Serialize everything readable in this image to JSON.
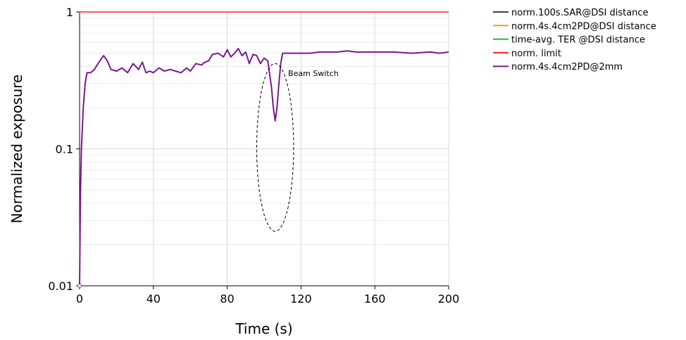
{
  "chart_data": {
    "type": "line",
    "xlabel": "Time (s)",
    "ylabel": "Normalized exposure",
    "xlim": [
      0,
      200
    ],
    "ylim": [
      0.01,
      1
    ],
    "yscale": "log",
    "xticks": [
      "0",
      "40",
      "80",
      "120",
      "160",
      "200"
    ],
    "yticks": [
      "0.01",
      "0.1",
      "1"
    ],
    "grid": true,
    "legend_position": "right",
    "series": [
      {
        "name": "norm.100s.SAR@DSI distance",
        "color": "#404040",
        "x": [],
        "y": []
      },
      {
        "name": "norm.4s.4cm2PD@DSI distance",
        "color": "#f0a30a",
        "x": [],
        "y": []
      },
      {
        "name": "time-avg. TER @DSI distance",
        "color": "#1db954",
        "x": [],
        "y": []
      },
      {
        "name": "norm. limit",
        "color": "#ff2020",
        "x": [
          0,
          200
        ],
        "y": [
          1,
          1
        ]
      },
      {
        "name": "norm.4s.4cm2PD@2mm",
        "color": "#7a1a8c",
        "x": [
          0,
          0.5,
          1,
          2,
          3,
          4,
          6,
          8,
          10,
          12,
          13,
          15,
          17,
          20,
          23,
          26,
          29,
          32,
          34,
          36,
          38,
          40,
          43,
          46,
          49,
          52,
          55,
          58,
          60,
          63,
          66,
          68,
          70,
          72,
          75,
          78,
          80,
          82,
          84,
          86,
          88,
          90,
          92,
          94,
          96,
          98,
          100,
          102,
          104,
          105,
          106,
          107,
          108,
          109,
          110,
          112,
          115,
          120,
          125,
          130,
          135,
          140,
          145,
          150,
          160,
          170,
          180,
          190,
          195,
          200
        ],
        "y": [
          0.01,
          0.05,
          0.1,
          0.2,
          0.3,
          0.36,
          0.36,
          0.38,
          0.42,
          0.46,
          0.48,
          0.44,
          0.38,
          0.37,
          0.39,
          0.36,
          0.42,
          0.38,
          0.43,
          0.36,
          0.37,
          0.36,
          0.39,
          0.37,
          0.38,
          0.37,
          0.36,
          0.39,
          0.37,
          0.42,
          0.41,
          0.43,
          0.44,
          0.49,
          0.5,
          0.47,
          0.53,
          0.47,
          0.5,
          0.54,
          0.48,
          0.51,
          0.42,
          0.49,
          0.48,
          0.42,
          0.46,
          0.44,
          0.28,
          0.2,
          0.16,
          0.2,
          0.3,
          0.42,
          0.5,
          0.5,
          0.5,
          0.5,
          0.5,
          0.51,
          0.51,
          0.51,
          0.52,
          0.51,
          0.51,
          0.51,
          0.5,
          0.51,
          0.5,
          0.51
        ]
      }
    ],
    "annotation": {
      "text": "Beam Switch",
      "x": 113,
      "y": 0.34
    },
    "ellipse": {
      "cx": 106,
      "cy": 0.1,
      "rx": 10,
      "y_top": 0.42,
      "y_bottom": 0.025
    }
  }
}
